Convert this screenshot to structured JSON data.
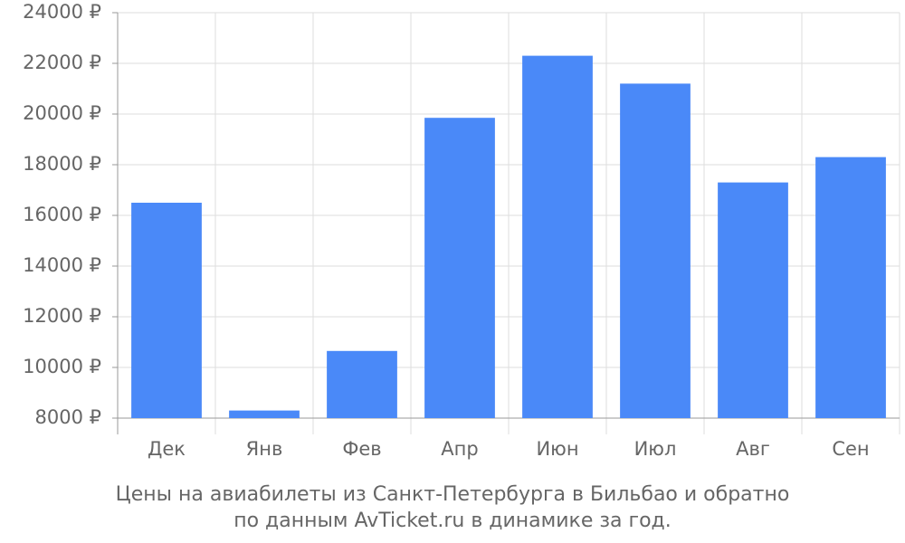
{
  "chart_data": {
    "type": "bar",
    "title": [
      "Цены на авиабилеты из Санкт-Петербурга в Бильбао и обратно",
      "по данным AvTicket.ru в динамике за год."
    ],
    "categories": [
      "Дек",
      "Янв",
      "Фев",
      "Апр",
      "Июн",
      "Июл",
      "Авг",
      "Сен"
    ],
    "values": [
      16500,
      8300,
      10650,
      19850,
      22300,
      21200,
      17300,
      18300
    ],
    "color": "#4a89f8",
    "ylim": [
      8000,
      24000
    ],
    "yticks": [
      {
        "value": 8000,
        "label": "8000 ₽"
      },
      {
        "value": 10000,
        "label": "10000 ₽"
      },
      {
        "value": 12000,
        "label": "12000 ₽"
      },
      {
        "value": 14000,
        "label": "14000 ₽"
      },
      {
        "value": 16000,
        "label": "16000 ₽"
      },
      {
        "value": 18000,
        "label": "18000 ₽"
      },
      {
        "value": 20000,
        "label": "20000 ₽"
      },
      {
        "value": 22000,
        "label": "22000 ₽"
      },
      {
        "value": 24000,
        "label": "24000 ₽"
      }
    ],
    "grid": true
  }
}
